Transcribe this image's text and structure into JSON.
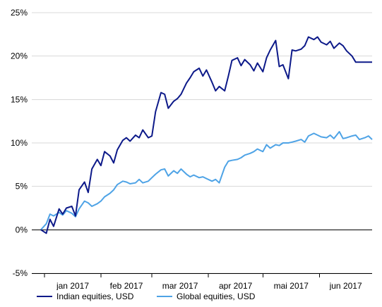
{
  "chart_data": {
    "type": "line",
    "ylim": [
      -5,
      25
    ],
    "y_ticks": [
      -5,
      0,
      5,
      10,
      15,
      20,
      25
    ],
    "y_tick_labels": [
      "-5%",
      "0%",
      "5%",
      "10%",
      "15%",
      "20%",
      "25%"
    ],
    "x_tick_labels": [
      "jan 2017",
      "feb 2017",
      "mar 2017",
      "apr 2017",
      "mai 2017",
      "jun 2017"
    ],
    "grid": "horizontal",
    "legend_position": "bottom",
    "x_dates": [
      "2016-12-30",
      "2017-01-02",
      "2017-01-04",
      "2017-01-06",
      "2017-01-09",
      "2017-01-11",
      "2017-01-13",
      "2017-01-16",
      "2017-01-18",
      "2017-01-20",
      "2017-01-23",
      "2017-01-25",
      "2017-01-27",
      "2017-01-30",
      "2017-02-01",
      "2017-02-03",
      "2017-02-06",
      "2017-02-08",
      "2017-02-10",
      "2017-02-13",
      "2017-02-15",
      "2017-02-17",
      "2017-02-20",
      "2017-02-22",
      "2017-02-24",
      "2017-02-27",
      "2017-03-01",
      "2017-03-03",
      "2017-03-06",
      "2017-03-08",
      "2017-03-10",
      "2017-03-13",
      "2017-03-15",
      "2017-03-17",
      "2017-03-20",
      "2017-03-22",
      "2017-03-24",
      "2017-03-27",
      "2017-03-29",
      "2017-03-31",
      "2017-04-03",
      "2017-04-05",
      "2017-04-07",
      "2017-04-10",
      "2017-04-12",
      "2017-04-14",
      "2017-04-17",
      "2017-04-19",
      "2017-04-21",
      "2017-04-24",
      "2017-04-26",
      "2017-04-28",
      "2017-05-01",
      "2017-05-03",
      "2017-05-05",
      "2017-05-08",
      "2017-05-10",
      "2017-05-12",
      "2017-05-15",
      "2017-05-17",
      "2017-05-19",
      "2017-05-22",
      "2017-05-24",
      "2017-05-26",
      "2017-05-29",
      "2017-05-31",
      "2017-06-02",
      "2017-06-05",
      "2017-06-07",
      "2017-06-09",
      "2017-06-12",
      "2017-06-14",
      "2017-06-16",
      "2017-06-19",
      "2017-06-21",
      "2017-06-23",
      "2017-06-26",
      "2017-06-28",
      "2017-06-30"
    ],
    "series": [
      {
        "name": "Indian equities, USD",
        "color": "#0c1989",
        "values": [
          0.0,
          -0.4,
          1.2,
          0.4,
          2.4,
          1.8,
          2.5,
          2.7,
          1.6,
          4.6,
          5.5,
          4.3,
          7.0,
          8.1,
          7.4,
          9.0,
          8.5,
          7.7,
          9.2,
          10.3,
          10.6,
          10.2,
          10.9,
          10.6,
          11.5,
          10.6,
          10.8,
          13.6,
          15.8,
          15.6,
          14.0,
          14.8,
          15.1,
          15.6,
          16.9,
          17.5,
          18.2,
          18.6,
          17.7,
          18.4,
          17.0,
          16.0,
          16.5,
          16.0,
          17.7,
          19.5,
          19.8,
          18.9,
          19.6,
          19.0,
          18.3,
          19.2,
          18.2,
          19.8,
          20.7,
          21.8,
          18.8,
          19.0,
          17.4,
          20.7,
          20.6,
          20.8,
          21.2,
          22.2,
          21.9,
          22.2,
          21.6,
          21.3,
          21.7,
          20.9,
          21.5,
          21.2,
          20.6,
          20.0,
          19.3,
          19.3,
          19.3,
          19.3,
          19.3
        ]
      },
      {
        "name": "Global equities, USD",
        "color": "#4ea3e6",
        "values": [
          0.0,
          0.7,
          1.8,
          1.6,
          2.0,
          1.7,
          2.2,
          1.9,
          1.5,
          2.4,
          3.3,
          3.1,
          2.7,
          3.0,
          3.3,
          3.8,
          4.2,
          4.6,
          5.2,
          5.6,
          5.5,
          5.3,
          5.4,
          5.8,
          5.4,
          5.6,
          6.0,
          6.4,
          6.9,
          7.0,
          6.2,
          6.8,
          6.5,
          7.0,
          6.4,
          6.1,
          6.3,
          6.0,
          6.1,
          5.9,
          5.6,
          5.8,
          5.4,
          7.2,
          7.9,
          8.0,
          8.1,
          8.3,
          8.6,
          8.8,
          9.0,
          9.3,
          9.0,
          9.8,
          9.4,
          9.8,
          9.7,
          10.0,
          10.0,
          10.1,
          10.2,
          10.4,
          10.1,
          10.8,
          11.1,
          10.9,
          10.7,
          10.6,
          10.9,
          10.5,
          11.3,
          10.5,
          10.6,
          10.8,
          10.9,
          10.4,
          10.6,
          10.8,
          10.4
        ]
      }
    ]
  }
}
